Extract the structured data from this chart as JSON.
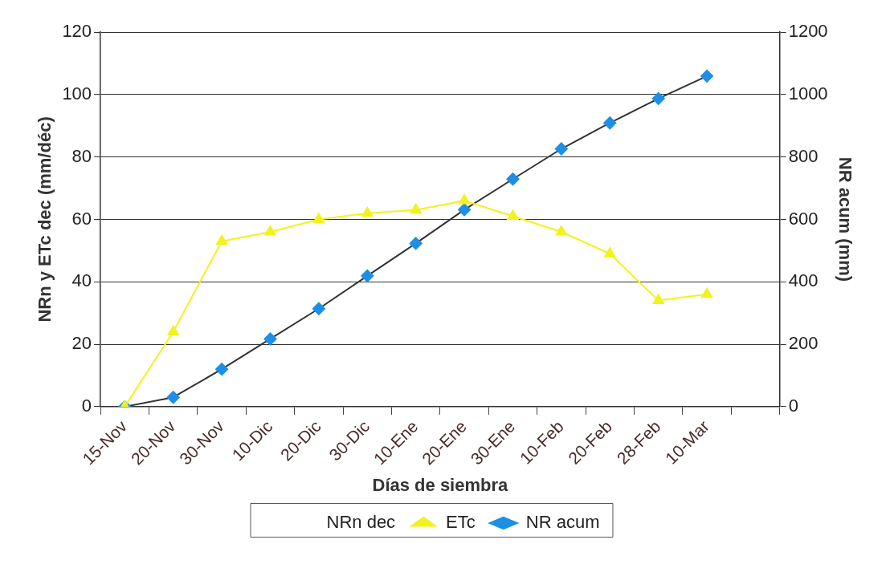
{
  "chart_data": {
    "type": "line",
    "xlabel": "Días de siembra",
    "ylabel": "NRn y ETc dec (mm/déc)",
    "y2label": "NR acum (mm)",
    "categories": [
      "15-Nov",
      "20-Nov",
      "30-Nov",
      "10-Dic",
      "20-Dic",
      "30-Dic",
      "10-Ene",
      "20-Ene",
      "30-Ene",
      "10-Feb",
      "20-Feb",
      "28-Feb",
      "10-Mar",
      null
    ],
    "series": [
      {
        "name": "NRn dec",
        "values": [
          null,
          null,
          null,
          null,
          null,
          null,
          null,
          null,
          null,
          null,
          null,
          null,
          null,
          null
        ]
      },
      {
        "name": "ETc",
        "color": "#f2f21e",
        "marker": "triangle",
        "values": [
          0,
          24,
          53,
          56,
          60,
          62,
          63,
          66,
          61,
          56,
          49,
          34,
          36,
          null
        ]
      },
      {
        "name": "NR acum",
        "color": "#1e8fe6",
        "marker": "diamond",
        "axis": "y2",
        "values": [
          0,
          30,
          120,
          217,
          314,
          419,
          523,
          631,
          729,
          826,
          909,
          987,
          1059,
          null
        ]
      }
    ],
    "ylim": [
      0,
      120
    ],
    "yticks": [
      0,
      20,
      40,
      60,
      80,
      100,
      120
    ],
    "y2lim": [
      0,
      1200
    ],
    "y2ticks": [
      0,
      200,
      400,
      600,
      800,
      1000,
      1200
    ],
    "grid": "y",
    "legend": "bottom"
  }
}
